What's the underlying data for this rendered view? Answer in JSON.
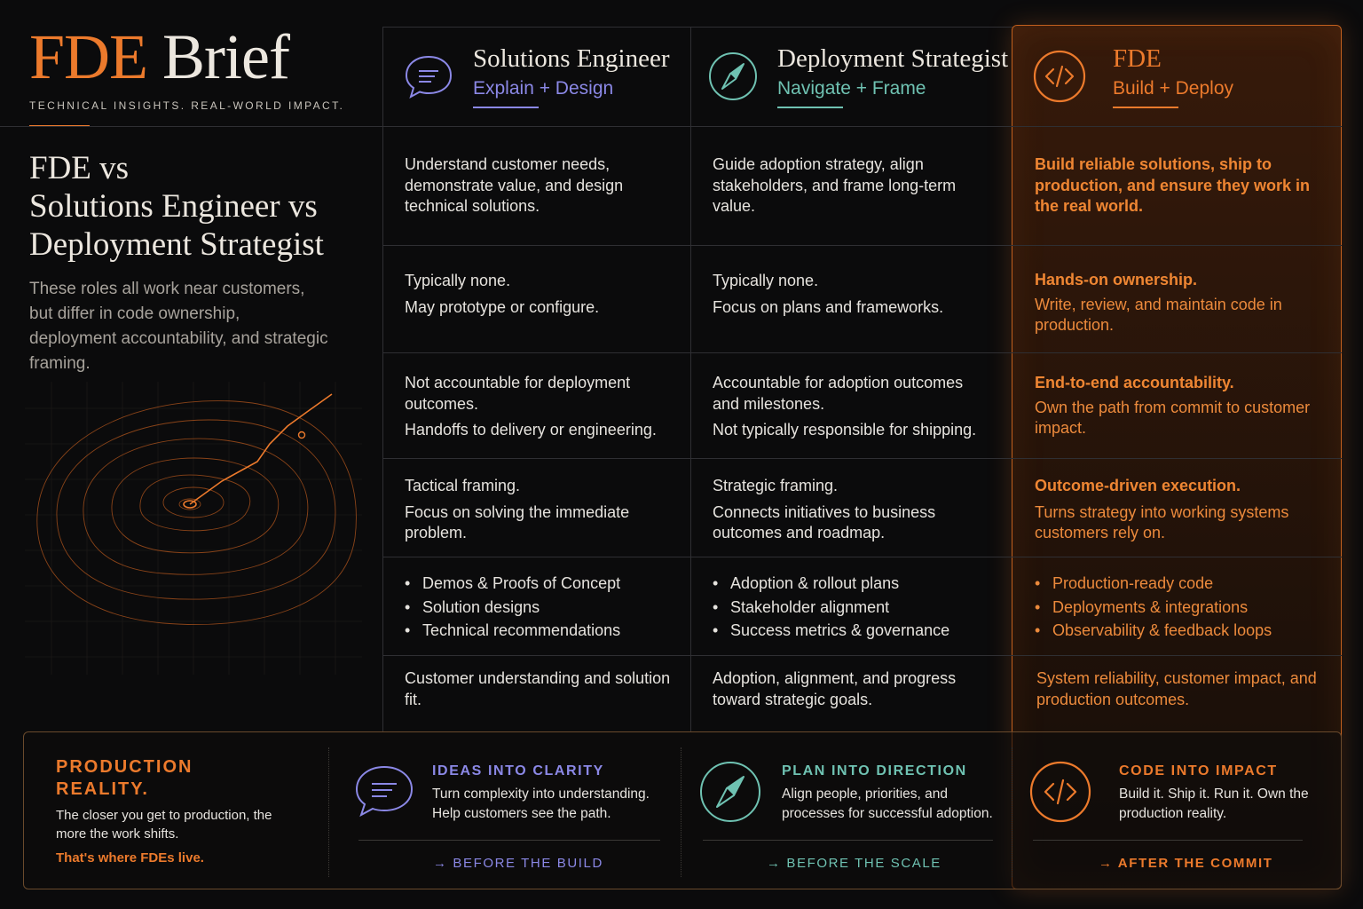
{
  "brand": {
    "title_accent": "FDE",
    "title_rest": "Brief",
    "tagline": "TECHNICAL INSIGHTS. REAL-WORLD IMPACT."
  },
  "intro": {
    "title_lines": [
      "FDE vs",
      "Solutions Engineer vs",
      "Deployment Strategist"
    ],
    "description": "These roles all work near customers, but differ in code ownership, deployment accountability, and strategic framing."
  },
  "colors": {
    "accent_orange": "#ec7a2c",
    "se_purple": "#8b88e6",
    "ds_teal": "#6fc2b2",
    "background": "#0b0b0c"
  },
  "columns": [
    {
      "role": "Solutions Engineer",
      "subtitle": "Explain + Design",
      "icon": "chat-bubble-icon"
    },
    {
      "role": "Deployment Strategist",
      "subtitle": "Navigate + Frame",
      "icon": "compass-icon"
    },
    {
      "role": "FDE",
      "subtitle": "Build + Deploy",
      "icon": "code-brackets-icon"
    }
  ],
  "rows": [
    {
      "se": [
        "Understand customer needs, demonstrate value, and design technical solutions."
      ],
      "ds": [
        "Guide adoption strategy, align stakeholders, and frame long-term value."
      ],
      "fde_lead": "Build reliable solutions, ship to production, and ensure they work in the real world.",
      "fde": ""
    },
    {
      "se": [
        "Typically none.",
        "May prototype or configure."
      ],
      "ds": [
        "Typically none.",
        "Focus on plans and frameworks."
      ],
      "fde_lead": "Hands-on ownership.",
      "fde": "Write, review, and maintain code in production."
    },
    {
      "se": [
        "Not accountable for deployment outcomes.",
        "Handoffs to delivery or engineering."
      ],
      "ds": [
        "Accountable for adoption outcomes and milestones.",
        "Not typically responsible for shipping."
      ],
      "fde_lead": "End-to-end accountability.",
      "fde": "Own the path from commit to customer impact."
    },
    {
      "se": [
        "Tactical framing.",
        "Focus on solving the immediate problem."
      ],
      "ds": [
        "Strategic framing.",
        "Connects initiatives to business outcomes and roadmap."
      ],
      "fde_lead": "Outcome-driven execution.",
      "fde": "Turns strategy into working systems customers rely on."
    },
    {
      "se_list": [
        "Demos & Proofs of Concept",
        "Solution designs",
        "Technical recommendations"
      ],
      "ds_list": [
        "Adoption & rollout plans",
        "Stakeholder alignment",
        "Success metrics & governance"
      ],
      "fde_list": [
        "Production-ready code",
        "Deployments & integrations",
        "Observability & feedback loops"
      ]
    },
    {
      "se": [
        "Customer understanding and solution fit."
      ],
      "ds": [
        "Adoption, alignment, and progress toward strategic goals."
      ],
      "fde": "System reliability, customer impact, and production outcomes."
    }
  ],
  "footer": {
    "production": {
      "title_lines": [
        "PRODUCTION",
        "REALITY."
      ],
      "description": "The closer you get to production, the more the work shifts.",
      "tagline": "That's where FDEs live."
    },
    "stages": [
      {
        "icon": "chat-bubble-icon",
        "title": "IDEAS INTO CLARITY",
        "description": "Turn complexity into understanding. Help customers see the path.",
        "link": "→ BEFORE THE BUILD"
      },
      {
        "icon": "compass-icon",
        "title": "PLAN INTO DIRECTION",
        "description": "Align people, priorities, and processes for successful adoption.",
        "link": "→ BEFORE THE SCALE"
      },
      {
        "icon": "code-brackets-icon",
        "title": "CODE INTO IMPACT",
        "description": "Build it. Ship it. Run it. Own the production reality.",
        "link": "→ AFTER THE COMMIT"
      }
    ]
  }
}
